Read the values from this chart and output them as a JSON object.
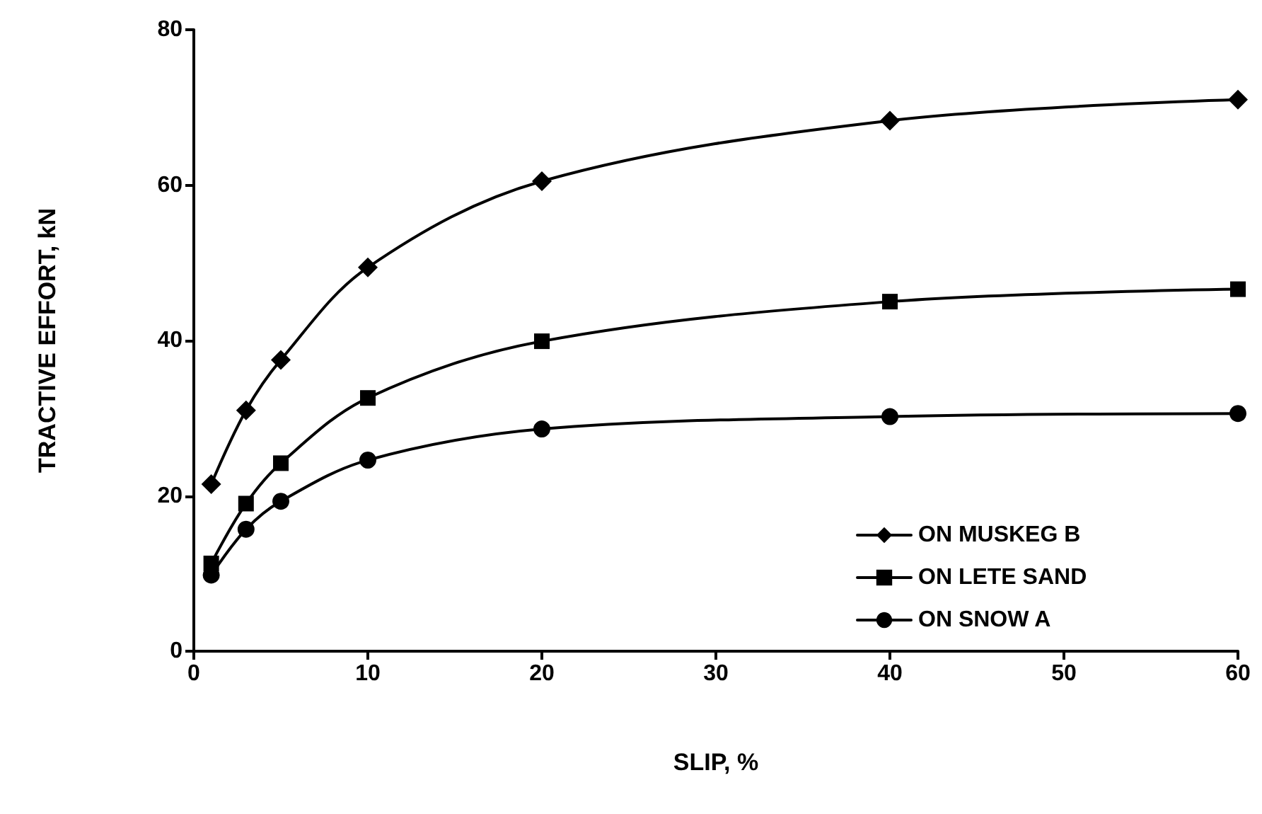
{
  "chart_data": {
    "type": "line",
    "xlabel": "SLIP, %",
    "ylabel": "TRACTIVE EFFORT, kN",
    "xlim": [
      0,
      60
    ],
    "xticks": [
      0,
      10,
      20,
      30,
      40,
      50,
      60
    ],
    "ylim": [
      0,
      80
    ],
    "yticks": [
      0,
      20,
      40,
      60,
      80
    ],
    "grid": false,
    "legend": "bottom right",
    "line_style": "solid",
    "series": [
      {
        "name": "ON MUSKEG B",
        "color": "#000000",
        "marker": "diamond",
        "x": [
          1,
          3,
          5,
          10,
          20,
          40,
          60
        ],
        "values": [
          21.5,
          31,
          37.5,
          49.4,
          60.5,
          68.3,
          71
        ]
      },
      {
        "name": "ON LETE SAND",
        "color": "#000000",
        "marker": "square",
        "x": [
          1,
          3,
          5,
          10,
          20,
          40,
          60
        ],
        "values": [
          11.3,
          19,
          24.2,
          32.6,
          39.9,
          45,
          46.6
        ]
      },
      {
        "name": "ON SNOW A",
        "color": "#000000",
        "marker": "circle",
        "x": [
          1,
          3,
          5,
          10,
          20,
          40,
          60
        ],
        "values": [
          9.8,
          15.7,
          19.3,
          24.6,
          28.6,
          30.2,
          30.6
        ]
      }
    ]
  }
}
